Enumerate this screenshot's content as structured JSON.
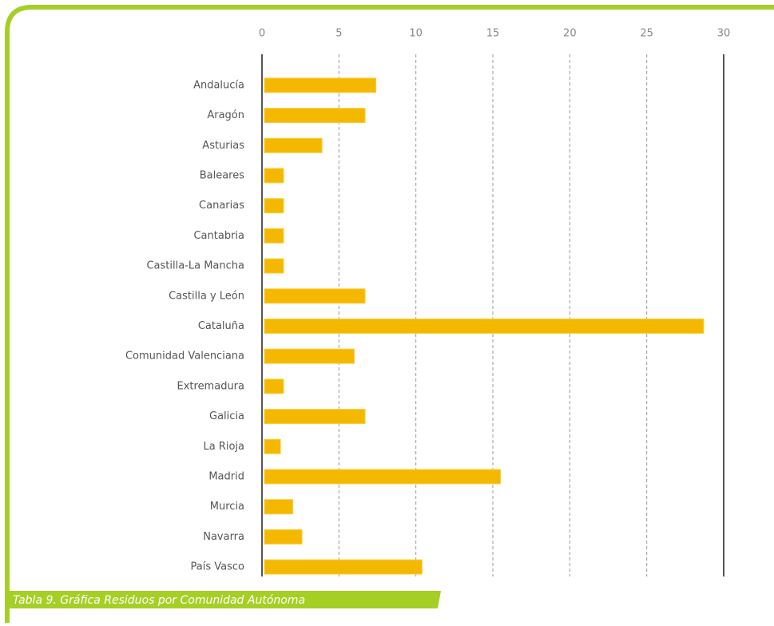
{
  "chart_data": {
    "type": "bar",
    "caption": "Tabla 9. Gráfica Residuos por Comunidad Autónoma",
    "categories": [
      "Andalucía",
      "Aragón",
      "Asturias",
      "Baleares",
      "Canarias",
      "Cantabria",
      "Castilla-La Mancha",
      "Castilla y León",
      "Cataluña",
      "Comunidad Valenciana",
      "Extremadura",
      "Galicia",
      "La Rioja",
      "Madrid",
      "Murcia",
      "Navarra",
      "País Vasco"
    ],
    "values": [
      7.4,
      6.7,
      3.9,
      1.4,
      1.4,
      1.4,
      1.4,
      6.7,
      28.7,
      6.0,
      1.4,
      6.7,
      1.2,
      15.5,
      2.0,
      2.6,
      10.4
    ],
    "color": "#f5b800",
    "xlim": [
      0,
      30
    ],
    "xticks": [
      0,
      5,
      10,
      15,
      20,
      25,
      30
    ],
    "grid": true
  }
}
